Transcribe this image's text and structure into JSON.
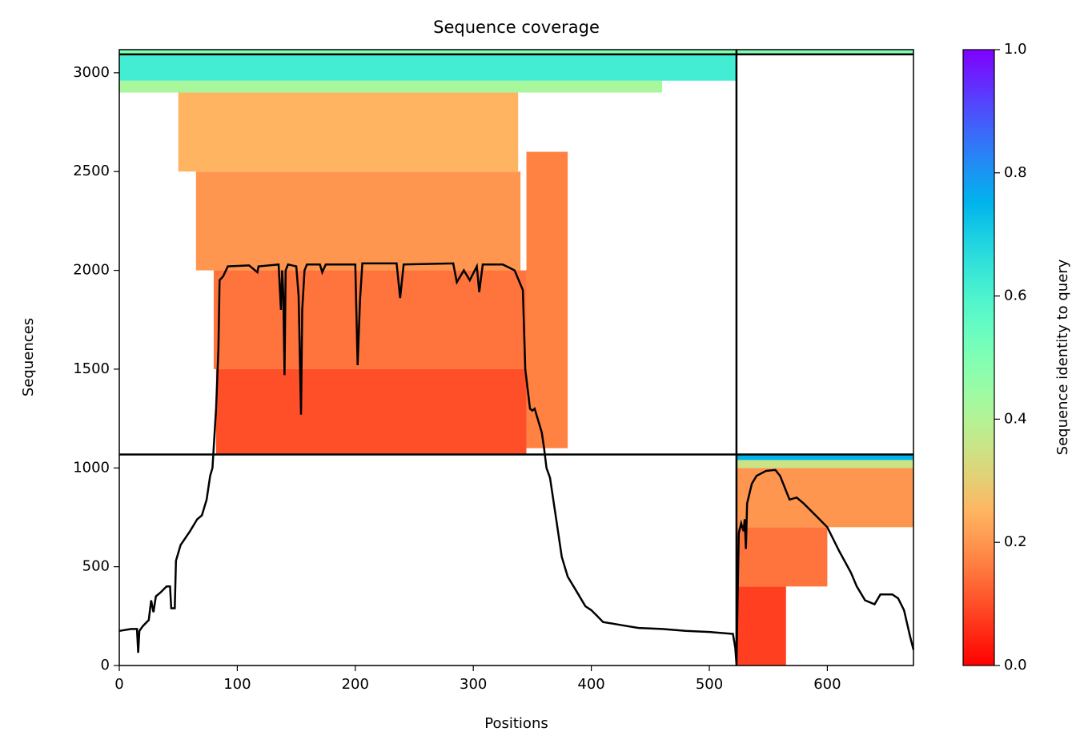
{
  "chart_data": {
    "type": "coverage",
    "title": "Sequence coverage",
    "xlabel": "Positions",
    "ylabel": "Sequences",
    "colorbar_label": "Sequence identity to query",
    "colormap": "rainbow_r",
    "xlim": [
      0,
      673
    ],
    "ylim": [
      0,
      3117
    ],
    "xticks": [
      0,
      100,
      200,
      300,
      400,
      500,
      600
    ],
    "yticks": [
      0,
      500,
      1000,
      1500,
      2000,
      2500,
      3000
    ],
    "clim": [
      0,
      1
    ],
    "cticks": [
      {
        "value": 0,
        "label": "0.0"
      },
      0.2,
      0.4,
      0.6,
      0.8,
      {
        "value": 1,
        "label": "1.0"
      }
    ],
    "x_boundaries": [
      523
    ],
    "y_boundaries": [
      1068,
      3093
    ],
    "heatmap": [
      {
        "x0": 82,
        "x1": 345,
        "y0": 1068,
        "y1": 1500,
        "value": 0.1
      },
      {
        "x0": 345,
        "x1": 380,
        "y0": 1100,
        "y1": 2600,
        "value": 0.17
      },
      {
        "x0": 80,
        "x1": 345,
        "y0": 1500,
        "y1": 2000,
        "value": 0.15
      },
      {
        "x0": 65,
        "x1": 340,
        "y0": 2000,
        "y1": 2500,
        "value": 0.2
      },
      {
        "x0": 50,
        "x1": 338,
        "y0": 2500,
        "y1": 2900,
        "value": 0.25
      },
      {
        "x0": 0,
        "x1": 460,
        "y0": 2900,
        "y1": 2960,
        "value": 0.42
      },
      {
        "x0": 0,
        "x1": 523,
        "y0": 2960,
        "y1": 3090,
        "value": 0.62
      },
      {
        "x0": 0,
        "x1": 673,
        "y0": 3093,
        "y1": 3117,
        "value": 0.5
      },
      {
        "x0": 523,
        "x1": 565,
        "y0": 0,
        "y1": 400,
        "value": 0.08
      },
      {
        "x0": 523,
        "x1": 600,
        "y0": 400,
        "y1": 700,
        "value": 0.15
      },
      {
        "x0": 523,
        "x1": 673,
        "y0": 700,
        "y1": 1000,
        "value": 0.2
      },
      {
        "x0": 523,
        "x1": 673,
        "y0": 1000,
        "y1": 1040,
        "value": 0.35
      },
      {
        "x0": 523,
        "x1": 673,
        "y0": 1040,
        "y1": 1068,
        "value": 0.75
      }
    ],
    "coverage": {
      "color": "#000000",
      "x": [
        0,
        10,
        15,
        16,
        17,
        20,
        25,
        27,
        29,
        31,
        35,
        40,
        43,
        44,
        47,
        48,
        52,
        60,
        66,
        70,
        74,
        77,
        79,
        80,
        82,
        84,
        85,
        88,
        92,
        110,
        117,
        118,
        135,
        137,
        138,
        139,
        140,
        141,
        143,
        150,
        152,
        154,
        155,
        157,
        159,
        170,
        172,
        175,
        200,
        202,
        204,
        206,
        235,
        238,
        241,
        283,
        286,
        292,
        297,
        303,
        305,
        308,
        325,
        335,
        342,
        344,
        348,
        350,
        352,
        358,
        360,
        362,
        365,
        370,
        375,
        380,
        385,
        390,
        395,
        400,
        405,
        410,
        420,
        430,
        440,
        460,
        480,
        500,
        520,
        522,
        523,
        525,
        527,
        529,
        530,
        531,
        532,
        536,
        540,
        548,
        556,
        560,
        564,
        568,
        574,
        580,
        590,
        600,
        610,
        620,
        625,
        632,
        640,
        645,
        655,
        660,
        665,
        670,
        673
      ],
      "values": [
        175,
        185,
        185,
        65,
        175,
        200,
        230,
        330,
        270,
        350,
        370,
        400,
        400,
        290,
        290,
        530,
        610,
        680,
        740,
        760,
        840,
        960,
        1000,
        1100,
        1300,
        1600,
        1950,
        1970,
        2020,
        2025,
        1990,
        2020,
        2030,
        1800,
        2000,
        1870,
        1470,
        2000,
        2030,
        2020,
        1870,
        1270,
        1800,
        2000,
        2030,
        2030,
        1990,
        2030,
        2030,
        1520,
        1850,
        2035,
        2035,
        1860,
        2030,
        2035,
        1940,
        2000,
        1950,
        2020,
        1890,
        2030,
        2030,
        2000,
        1900,
        1500,
        1300,
        1290,
        1300,
        1180,
        1100,
        1000,
        950,
        750,
        550,
        450,
        400,
        350,
        300,
        280,
        250,
        220,
        210,
        200,
        190,
        185,
        175,
        170,
        160,
        90,
        10,
        670,
        720,
        680,
        740,
        590,
        820,
        920,
        960,
        985,
        990,
        960,
        900,
        840,
        850,
        820,
        760,
        700,
        580,
        470,
        400,
        330,
        310,
        360,
        360,
        340,
        280,
        150,
        80
      ]
    }
  }
}
